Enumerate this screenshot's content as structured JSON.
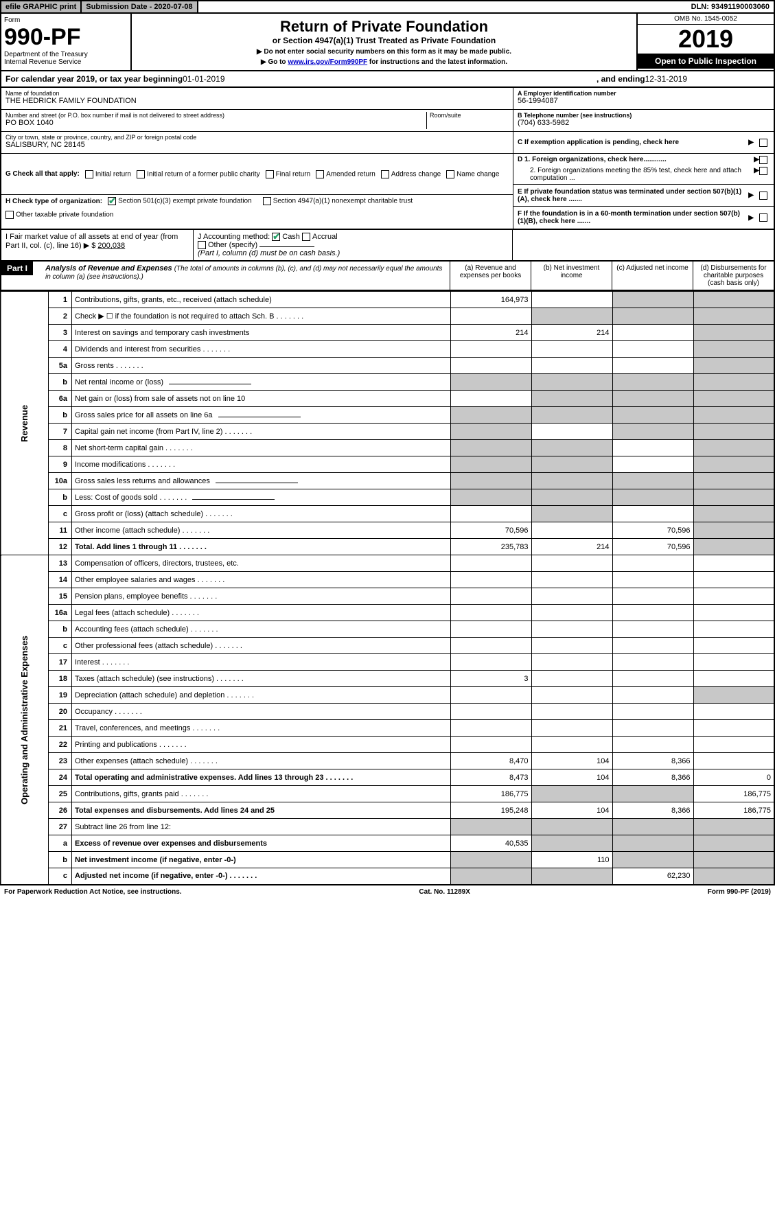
{
  "topbar": {
    "efile": "efile GRAPHIC print",
    "sub_label": "Submission Date - 2020-07-08",
    "dln": "DLN: 93491190003060"
  },
  "header": {
    "form_label": "Form",
    "form_num": "990-PF",
    "dept": "Department of the Treasury\nInternal Revenue Service",
    "title": "Return of Private Foundation",
    "subtitle": "or Section 4947(a)(1) Trust Treated as Private Foundation",
    "note1": "▶ Do not enter social security numbers on this form as it may be made public.",
    "note2_pre": "▶ Go to ",
    "note2_link": "www.irs.gov/Form990PF",
    "note2_post": " for instructions and the latest information.",
    "omb": "OMB No. 1545-0052",
    "year": "2019",
    "otp": "Open to Public Inspection"
  },
  "cal": {
    "pre": "For calendar year 2019, or tax year beginning ",
    "begin": "01-01-2019",
    "mid": " , and ending ",
    "end": "12-31-2019"
  },
  "info": {
    "name_lbl": "Name of foundation",
    "name": "THE HEDRICK FAMILY FOUNDATION",
    "addr_lbl": "Number and street (or P.O. box number if mail is not delivered to street address)",
    "addr": "PO BOX 1040",
    "room_lbl": "Room/suite",
    "city_lbl": "City or town, state or province, country, and ZIP or foreign postal code",
    "city": "SALISBURY, NC  28145",
    "a_lbl": "A Employer identification number",
    "a_val": "56-1994087",
    "b_lbl": "B Telephone number (see instructions)",
    "b_val": "(704) 633-5982",
    "c_lbl": "C If exemption application is pending, check here",
    "d1_lbl": "D 1. Foreign organizations, check here............",
    "d2_lbl": "2. Foreign organizations meeting the 85% test, check here and attach computation ...",
    "e_lbl": "E  If private foundation status was terminated under section 507(b)(1)(A), check here .......",
    "f_lbl": "F  If the foundation is in a 60-month termination under section 507(b)(1)(B), check here .......",
    "g_lbl": "G Check all that apply:",
    "g_opts": [
      "Initial return",
      "Initial return of a former public charity",
      "Final return",
      "Amended return",
      "Address change",
      "Name change"
    ],
    "h_lbl": "H Check type of organization:",
    "h_opts": [
      "Section 501(c)(3) exempt private foundation",
      "Section 4947(a)(1) nonexempt charitable trust",
      "Other taxable private foundation"
    ],
    "i_lbl": "I Fair market value of all assets at end of year (from Part II, col. (c), line 16) ▶ $",
    "i_val": "200,038",
    "j_lbl": "J Accounting method:",
    "j_cash": "Cash",
    "j_accrual": "Accrual",
    "j_other": "Other (specify)",
    "j_note": "(Part I, column (d) must be on cash basis.)"
  },
  "part1": {
    "hdr": "Part I",
    "title": "Analysis of Revenue and Expenses",
    "sub": "(The total of amounts in columns (b), (c), and (d) may not necessarily equal the amounts in column (a) (see instructions).)",
    "cols": {
      "a": "(a)    Revenue and expenses per books",
      "b": "(b)   Net investment income",
      "c": "(c)   Adjusted net income",
      "d": "(d)   Disbursements for charitable purposes (cash basis only)"
    },
    "side_rev": "Revenue",
    "side_exp": "Operating and Administrative Expenses"
  },
  "rows": [
    {
      "ln": "1",
      "desc": "Contributions, gifts, grants, etc., received (attach schedule)",
      "a": "164,973",
      "b": "",
      "c": "g",
      "d": "g"
    },
    {
      "ln": "2",
      "desc": "Check ▶ ☐ if the foundation is not required to attach Sch. B",
      "dots": true,
      "a": "",
      "b": "g",
      "c": "g",
      "d": "g"
    },
    {
      "ln": "3",
      "desc": "Interest on savings and temporary cash investments",
      "a": "214",
      "b": "214",
      "c": "",
      "d": "g"
    },
    {
      "ln": "4",
      "desc": "Dividends and interest from securities",
      "dots": true,
      "a": "",
      "b": "",
      "c": "",
      "d": "g"
    },
    {
      "ln": "5a",
      "desc": "Gross rents",
      "dots": true,
      "a": "",
      "b": "",
      "c": "",
      "d": "g"
    },
    {
      "ln": "b",
      "desc": "Net rental income or (loss)",
      "uline": true,
      "a": "g",
      "b": "g",
      "c": "g",
      "d": "g"
    },
    {
      "ln": "6a",
      "desc": "Net gain or (loss) from sale of assets not on line 10",
      "a": "",
      "b": "g",
      "c": "g",
      "d": "g"
    },
    {
      "ln": "b",
      "desc": "Gross sales price for all assets on line 6a",
      "uline": true,
      "a": "g",
      "b": "g",
      "c": "g",
      "d": "g"
    },
    {
      "ln": "7",
      "desc": "Capital gain net income (from Part IV, line 2)",
      "dots": true,
      "a": "g",
      "b": "",
      "c": "g",
      "d": "g"
    },
    {
      "ln": "8",
      "desc": "Net short-term capital gain",
      "dots": true,
      "a": "g",
      "b": "g",
      "c": "",
      "d": "g"
    },
    {
      "ln": "9",
      "desc": "Income modifications",
      "dots": true,
      "a": "g",
      "b": "g",
      "c": "",
      "d": "g"
    },
    {
      "ln": "10a",
      "desc": "Gross sales less returns and allowances",
      "uline": true,
      "a": "g",
      "b": "g",
      "c": "g",
      "d": "g"
    },
    {
      "ln": "b",
      "desc": "Less: Cost of goods sold",
      "dots": true,
      "uline": true,
      "a": "g",
      "b": "g",
      "c": "g",
      "d": "g"
    },
    {
      "ln": "c",
      "desc": "Gross profit or (loss) (attach schedule)",
      "dots": true,
      "a": "",
      "b": "g",
      "c": "",
      "d": "g"
    },
    {
      "ln": "11",
      "desc": "Other income (attach schedule)",
      "dots": true,
      "a": "70,596",
      "b": "",
      "c": "70,596",
      "d": "g"
    },
    {
      "ln": "12",
      "desc": "Total. Add lines 1 through 11",
      "dots": true,
      "bold": true,
      "a": "235,783",
      "b": "214",
      "c": "70,596",
      "d": "g"
    },
    {
      "ln": "13",
      "desc": "Compensation of officers, directors, trustees, etc.",
      "a": "",
      "b": "",
      "c": "",
      "d": ""
    },
    {
      "ln": "14",
      "desc": "Other employee salaries and wages",
      "dots": true,
      "a": "",
      "b": "",
      "c": "",
      "d": ""
    },
    {
      "ln": "15",
      "desc": "Pension plans, employee benefits",
      "dots": true,
      "a": "",
      "b": "",
      "c": "",
      "d": ""
    },
    {
      "ln": "16a",
      "desc": "Legal fees (attach schedule)",
      "dots": true,
      "a": "",
      "b": "",
      "c": "",
      "d": ""
    },
    {
      "ln": "b",
      "desc": "Accounting fees (attach schedule)",
      "dots": true,
      "a": "",
      "b": "",
      "c": "",
      "d": ""
    },
    {
      "ln": "c",
      "desc": "Other professional fees (attach schedule)",
      "dots": true,
      "a": "",
      "b": "",
      "c": "",
      "d": ""
    },
    {
      "ln": "17",
      "desc": "Interest",
      "dots": true,
      "a": "",
      "b": "",
      "c": "",
      "d": ""
    },
    {
      "ln": "18",
      "desc": "Taxes (attach schedule) (see instructions)",
      "dots": true,
      "a": "3",
      "b": "",
      "c": "",
      "d": ""
    },
    {
      "ln": "19",
      "desc": "Depreciation (attach schedule) and depletion",
      "dots": true,
      "a": "",
      "b": "",
      "c": "",
      "d": "g"
    },
    {
      "ln": "20",
      "desc": "Occupancy",
      "dots": true,
      "a": "",
      "b": "",
      "c": "",
      "d": ""
    },
    {
      "ln": "21",
      "desc": "Travel, conferences, and meetings",
      "dots": true,
      "a": "",
      "b": "",
      "c": "",
      "d": ""
    },
    {
      "ln": "22",
      "desc": "Printing and publications",
      "dots": true,
      "a": "",
      "b": "",
      "c": "",
      "d": ""
    },
    {
      "ln": "23",
      "desc": "Other expenses (attach schedule)",
      "dots": true,
      "a": "8,470",
      "b": "104",
      "c": "8,366",
      "d": ""
    },
    {
      "ln": "24",
      "desc": "Total operating and administrative expenses. Add lines 13 through 23",
      "dots": true,
      "bold": true,
      "a": "8,473",
      "b": "104",
      "c": "8,366",
      "d": "0"
    },
    {
      "ln": "25",
      "desc": "Contributions, gifts, grants paid",
      "dots": true,
      "a": "186,775",
      "b": "g",
      "c": "g",
      "d": "186,775"
    },
    {
      "ln": "26",
      "desc": "Total expenses and disbursements. Add lines 24 and 25",
      "bold": true,
      "a": "195,248",
      "b": "104",
      "c": "8,366",
      "d": "186,775"
    },
    {
      "ln": "27",
      "desc": "Subtract line 26 from line 12:",
      "a": "g",
      "b": "g",
      "c": "g",
      "d": "g"
    },
    {
      "ln": "a",
      "desc": "Excess of revenue over expenses and disbursements",
      "bold": true,
      "a": "40,535",
      "b": "g",
      "c": "g",
      "d": "g"
    },
    {
      "ln": "b",
      "desc": "Net investment income (if negative, enter -0-)",
      "bold": true,
      "a": "g",
      "b": "110",
      "c": "g",
      "d": "g"
    },
    {
      "ln": "c",
      "desc": "Adjusted net income (if negative, enter -0-)",
      "dots": true,
      "bold": true,
      "a": "g",
      "b": "g",
      "c": "62,230",
      "d": "g"
    }
  ],
  "footer": {
    "left": "For Paperwork Reduction Act Notice, see instructions.",
    "mid": "Cat. No. 11289X",
    "right": "Form 990-PF (2019)"
  }
}
